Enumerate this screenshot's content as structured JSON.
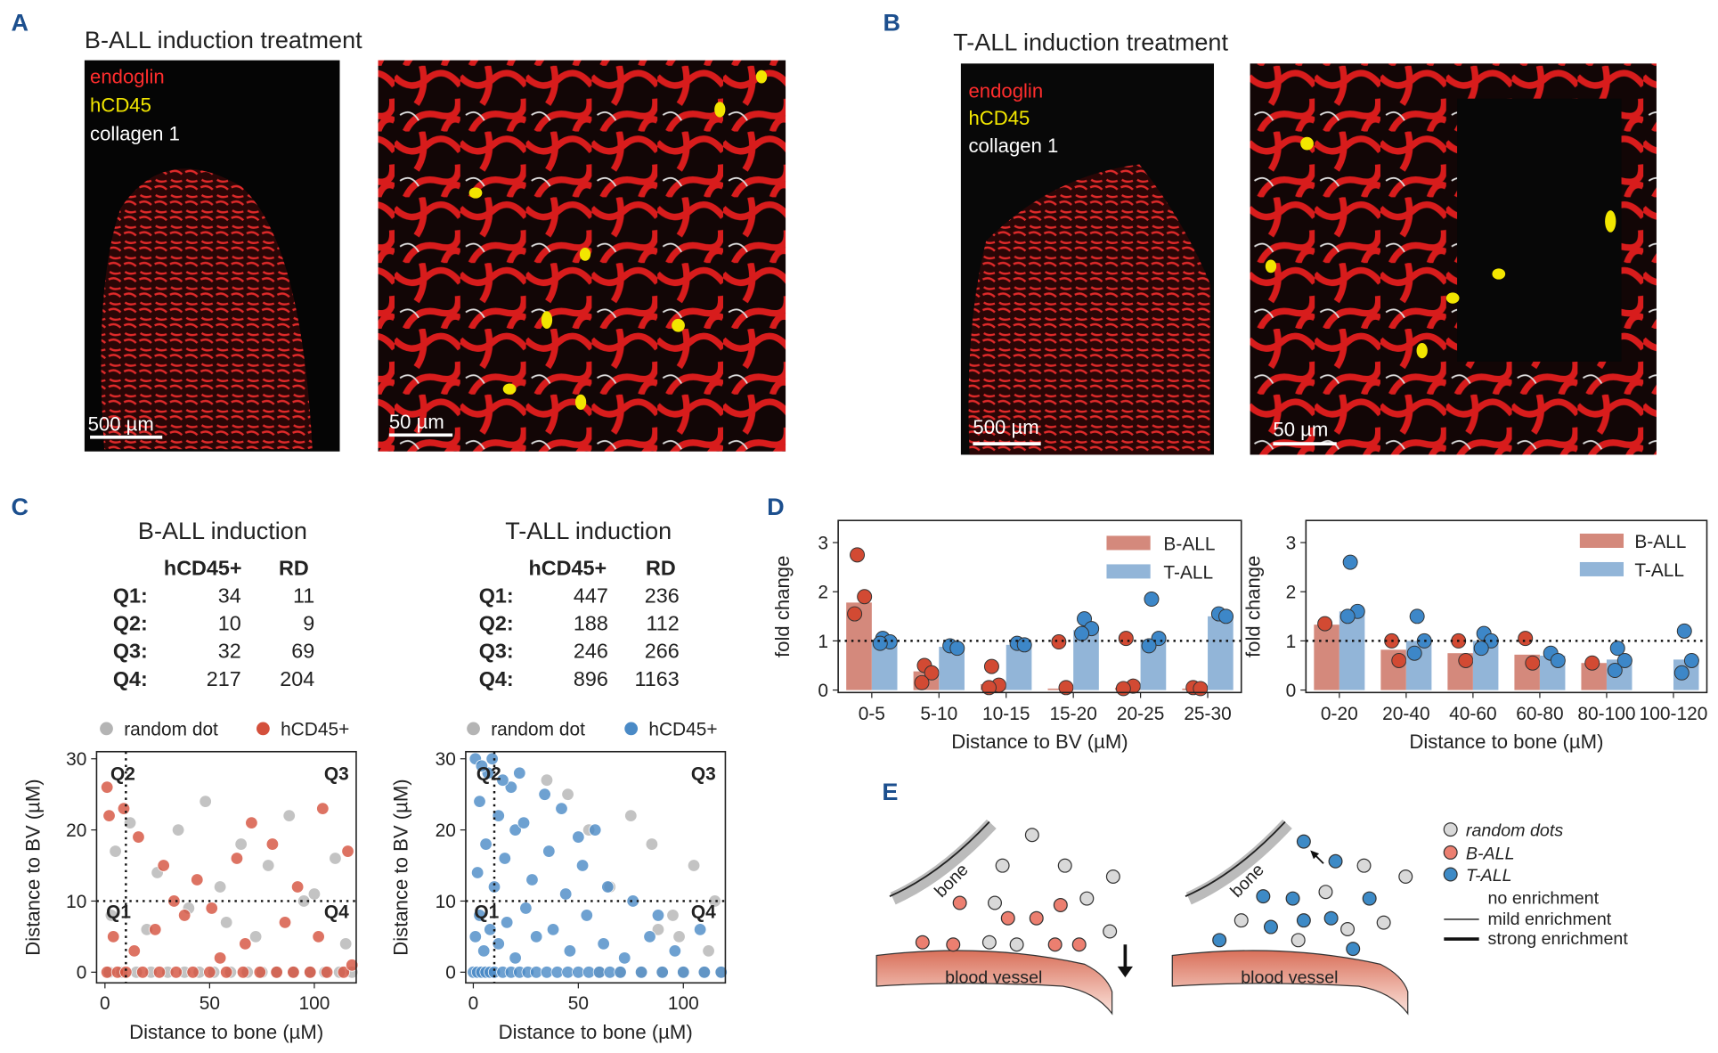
{
  "panels": {
    "A": {
      "label": "A",
      "title": "B-ALL induction treatment",
      "stains": [
        "endoglin",
        "hCD45",
        "collagen 1"
      ],
      "scale_bars": [
        "500 µm",
        "50 µm"
      ]
    },
    "B": {
      "label": "B",
      "title": "T-ALL induction treatment",
      "stains": [
        "endoglin",
        "hCD45",
        "collagen 1"
      ],
      "scale_bars": [
        "500 µm",
        "50 µm"
      ]
    },
    "C": {
      "label": "C"
    },
    "D": {
      "label": "D"
    },
    "E": {
      "label": "E"
    }
  },
  "tables": [
    {
      "title": "B-ALL induction",
      "columns": [
        "hCD45+",
        "RD"
      ],
      "rows": [
        [
          "Q1:",
          34,
          11
        ],
        [
          "Q2:",
          10,
          9
        ],
        [
          "Q3:",
          32,
          69
        ],
        [
          "Q4:",
          217,
          204
        ]
      ]
    },
    {
      "title": "T-ALL induction",
      "columns": [
        "hCD45+",
        "RD"
      ],
      "rows": [
        [
          "Q1:",
          447,
          236
        ],
        [
          "Q2:",
          188,
          112
        ],
        [
          "Q3:",
          246,
          266
        ],
        [
          "Q4:",
          896,
          1163
        ]
      ]
    }
  ],
  "chart_data": [
    {
      "type": "scatter",
      "xlabel": "Distance to bone (µM)",
      "ylabel": "Distance to BV (µM)",
      "xlim": [
        -4,
        120
      ],
      "ylim": [
        -1.5,
        31
      ],
      "xticks": [
        0,
        50,
        100
      ],
      "yticks": [
        0,
        10,
        20,
        30
      ],
      "quadrant_lines": {
        "x": 10,
        "y": 10
      },
      "quadrant_labels": [
        "Q1",
        "Q2",
        "Q3",
        "Q4"
      ],
      "legend": "top",
      "series": [
        {
          "name": "random dot",
          "color": "#b4b4b4",
          "x": [
            2,
            8,
            15,
            22,
            30,
            38,
            45,
            52,
            60,
            68,
            75,
            82,
            90,
            98,
            105,
            112,
            118,
            5,
            12,
            25,
            35,
            48,
            55,
            65,
            78,
            88,
            100,
            110,
            3,
            20,
            40,
            58,
            72,
            95,
            115
          ],
          "values": [
            0,
            0,
            0,
            0,
            0,
            0,
            0,
            0,
            0,
            0,
            0,
            0,
            0,
            0,
            0,
            0,
            0,
            17,
            21,
            14,
            20,
            24,
            12,
            18,
            15,
            22,
            11,
            16,
            8,
            6,
            9,
            7,
            5,
            10,
            4
          ]
        },
        {
          "name": "hCD45+",
          "color": "#d4503c",
          "x": [
            1,
            6,
            10,
            18,
            26,
            34,
            42,
            50,
            58,
            66,
            74,
            82,
            90,
            98,
            106,
            114,
            1,
            2,
            9,
            16,
            28,
            33,
            44,
            51,
            63,
            70,
            80,
            92,
            104,
            116,
            4,
            14,
            24,
            38,
            55,
            67,
            86,
            102,
            118
          ],
          "values": [
            0,
            0,
            0,
            0,
            0,
            0,
            0,
            0,
            0,
            0,
            0,
            0,
            0,
            0,
            0,
            0,
            26,
            22,
            23,
            19,
            15,
            10,
            13,
            9,
            16,
            21,
            18,
            12,
            23,
            17,
            5,
            3,
            6,
            8,
            2,
            4,
            7,
            5,
            1
          ]
        }
      ]
    },
    {
      "type": "scatter",
      "xlabel": "Distance to bone (µM)",
      "ylabel": "Distance to BV (µM)",
      "xlim": [
        -3.6,
        120
      ],
      "ylim": [
        -1.5,
        31
      ],
      "xticks": [
        0,
        50,
        100
      ],
      "yticks": [
        0,
        10,
        20,
        30
      ],
      "quadrant_lines": {
        "x": 10,
        "y": 10
      },
      "quadrant_labels": [
        "Q1",
        "Q2",
        "Q3",
        "Q4"
      ],
      "legend": "top",
      "series": [
        {
          "name": "random dot",
          "color": "#b4b4b4",
          "x": [
            60,
            70,
            80,
            90,
            100,
            110,
            118,
            65,
            85,
            95,
            105,
            115,
            75,
            55,
            45,
            35,
            112,
            98,
            88
          ],
          "values": [
            0,
            0,
            0,
            0,
            0,
            0,
            0,
            12,
            18,
            8,
            15,
            10,
            22,
            20,
            25,
            27,
            3,
            5,
            6
          ]
        },
        {
          "name": "hCD45+",
          "color": "#4a8ac6",
          "x": [
            0,
            2,
            4,
            6,
            8,
            10,
            14,
            18,
            22,
            26,
            30,
            35,
            40,
            45,
            50,
            55,
            60,
            65,
            70,
            80,
            90,
            100,
            110,
            118,
            1,
            3,
            5,
            8,
            12,
            16,
            20,
            25,
            30,
            38,
            46,
            54,
            62,
            72,
            84,
            96,
            108,
            2,
            6,
            10,
            15,
            20,
            28,
            36,
            44,
            52,
            64,
            76,
            88,
            3,
            7,
            12,
            18,
            24,
            34,
            42,
            50,
            58,
            1,
            4,
            9,
            14,
            22
          ],
          "values": [
            0,
            0,
            0,
            0,
            0,
            0,
            0,
            0,
            0,
            0,
            0,
            0,
            0,
            0,
            0,
            0,
            0,
            0,
            0,
            0,
            0,
            0,
            0,
            0,
            5,
            8,
            3,
            6,
            4,
            7,
            2,
            9,
            5,
            6,
            3,
            8,
            4,
            2,
            5,
            3,
            6,
            14,
            18,
            12,
            16,
            20,
            13,
            17,
            11,
            15,
            12,
            10,
            8,
            24,
            28,
            22,
            26,
            21,
            25,
            23,
            19,
            20,
            30,
            29,
            30,
            27,
            28
          ]
        }
      ]
    },
    {
      "type": "bar",
      "xlabel": "Distance to BV (µM)",
      "ylabel": "fold change",
      "ylim": [
        -0.05,
        3.45
      ],
      "yticks": [
        0,
        1,
        2,
        3
      ],
      "hline": 1,
      "legend": "upper right",
      "categories": [
        "0-5",
        "5-10",
        "10-15",
        "15-20",
        "20-25",
        "25-30"
      ],
      "series": [
        {
          "name": "B-ALL",
          "color": "#d4897c",
          "point_color": "#d24a33",
          "values": [
            1.78,
            0.38,
            0.12,
            0.03,
            0.05,
            0.03
          ],
          "replicates": [
            [
              2.75,
              1.9,
              1.55
            ],
            [
              0.5,
              0.35,
              0.15
            ],
            [
              0.48,
              0.1,
              0.05
            ],
            [
              0.98,
              0.05
            ],
            [
              1.05,
              0.08,
              0.03
            ],
            [
              0.05,
              0.03
            ]
          ]
        },
        {
          "name": "T-ALL",
          "color": "#92b5d8",
          "point_color": "#3d87c8",
          "values": [
            1.0,
            0.88,
            0.92,
            1.22,
            1.02,
            1.5
          ],
          "replicates": [
            [
              1.05,
              0.98,
              0.95
            ],
            [
              0.9,
              0.85
            ],
            [
              0.95,
              0.92
            ],
            [
              1.45,
              1.25,
              1.15
            ],
            [
              1.85,
              1.05,
              0.9
            ],
            [
              1.55,
              1.5
            ]
          ]
        }
      ]
    },
    {
      "type": "bar",
      "xlabel": "Distance to bone (µM)",
      "ylabel": "fold change",
      "ylim": [
        -0.05,
        3.45
      ],
      "yticks": [
        0,
        1,
        2,
        3
      ],
      "hline": 1,
      "legend": "upper right",
      "categories": [
        "0-20",
        "20-40",
        "40-60",
        "60-80",
        "80-100",
        "100-120"
      ],
      "series": [
        {
          "name": "B-ALL",
          "color": "#d4897c",
          "point_color": "#d24a33",
          "values": [
            1.33,
            0.82,
            0.75,
            0.72,
            0.55,
            null
          ],
          "replicates": [
            [
              1.35
            ],
            [
              1.0,
              0.6
            ],
            [
              1.0,
              0.6
            ],
            [
              1.05,
              0.55
            ],
            [
              0.55
            ],
            []
          ]
        },
        {
          "name": "T-ALL",
          "color": "#92b5d8",
          "point_color": "#3d87c8",
          "values": [
            1.6,
            1.0,
            1.0,
            0.7,
            0.62,
            0.62
          ],
          "replicates": [
            [
              2.6,
              1.6,
              1.5
            ],
            [
              1.5,
              1.0,
              0.75
            ],
            [
              1.15,
              1.0,
              0.85
            ],
            [
              0.75,
              0.6
            ],
            [
              0.85,
              0.6,
              0.4
            ],
            [
              1.2,
              0.6,
              0.35
            ]
          ]
        }
      ]
    }
  ],
  "diagram": {
    "bone": "bone",
    "vessel": "blood vessel",
    "legend": [
      "random dots",
      "B-ALL",
      "T-ALL",
      "no enrichment",
      "mild enrichment",
      "strong enrichment"
    ]
  }
}
